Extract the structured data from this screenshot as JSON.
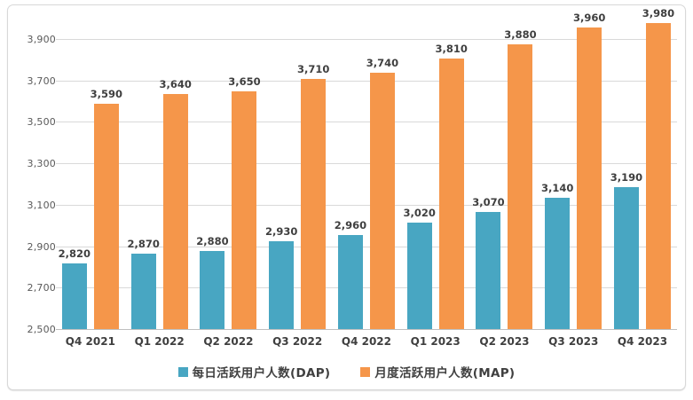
{
  "chart_data": {
    "type": "bar",
    "title": "",
    "categories": [
      "Q4 2021",
      "Q1 2022",
      "Q2 2022",
      "Q3 2022",
      "Q4 2022",
      "Q1 2023",
      "Q2 2023",
      "Q3 2023",
      "Q4 2023"
    ],
    "series": [
      {
        "name": "每日活跃用户人数(DAP)",
        "color": "#48a6c2",
        "values": [
          2820,
          2870,
          2880,
          2930,
          2960,
          3020,
          3070,
          3140,
          3190
        ]
      },
      {
        "name": "月度活跃用户人数(MAP)",
        "color": "#f5964a",
        "values": [
          3590,
          3640,
          3650,
          3710,
          3740,
          3810,
          3880,
          3960,
          3980
        ]
      }
    ],
    "ylim": [
      2500,
      3900
    ],
    "ytick_step": 200,
    "ytick_labels": [
      "2,500",
      "2,700",
      "2,900",
      "3,100",
      "3,300",
      "3,500",
      "3,700",
      "3,900"
    ],
    "grid": true,
    "gridline_color": "#d9d9d9",
    "axis_line_color": "#bfbfbf",
    "legend_position": "bottom",
    "data_labels": true
  }
}
